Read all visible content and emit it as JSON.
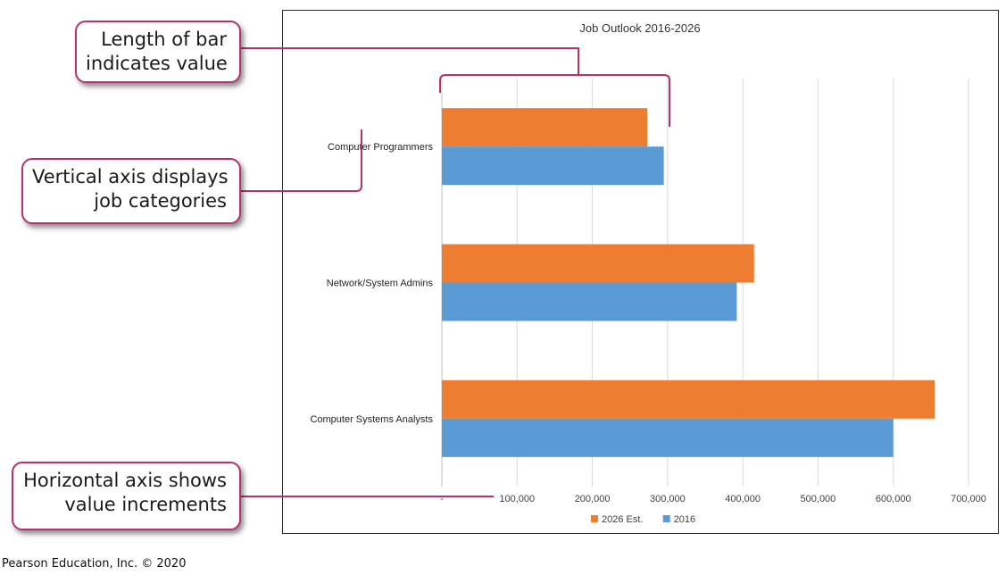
{
  "chart_data": {
    "type": "bar",
    "orientation": "horizontal",
    "title": "Job Outlook 2016-2026",
    "categories": [
      "Computer Programmers",
      "Network/System Admins",
      "Computer Systems Analysts"
    ],
    "series": [
      {
        "name": "2026 Est.",
        "color": "#ed7d31",
        "values": [
          273000,
          415000,
          655000
        ]
      },
      {
        "name": "2016",
        "color": "#5b9bd5",
        "values": [
          295000,
          392000,
          600000
        ]
      }
    ],
    "xlim": [
      0,
      700000
    ],
    "xticks": [
      0,
      100000,
      200000,
      300000,
      400000,
      500000,
      600000,
      700000
    ],
    "xtick_labels": [
      "-",
      "100,000",
      "200,000",
      "300,000",
      "400,000",
      "500,000",
      "600,000",
      "700,000"
    ],
    "grid": true,
    "legend_position": "bottom"
  },
  "callouts": {
    "bar_length": [
      "Length of bar",
      "indicates value"
    ],
    "vertical_axis": [
      "Vertical axis displays",
      "job categories"
    ],
    "horizontal_axis": [
      "Horizontal axis shows",
      "value increments"
    ]
  },
  "annotation_color": "#b5316f",
  "credit": "Pearson Education, Inc. © 2020"
}
